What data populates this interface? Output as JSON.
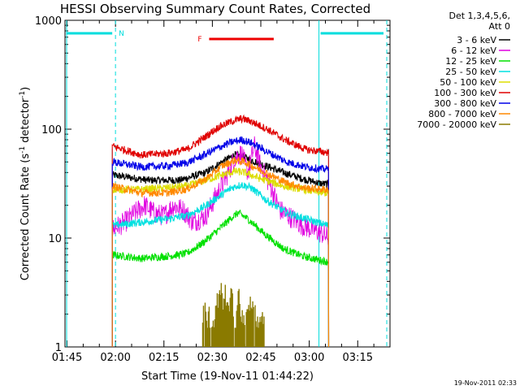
{
  "chart_data": {
    "type": "line",
    "title": "HESSI Observing Summary Count Rates, Corrected",
    "xlabel": "Start Time (19-Nov-11 01:44:22)",
    "ylabel": "Corrected Count Rate (s⁻¹ detector⁻¹)",
    "ylabel_main": "Corrected Count Rate (s",
    "ylabel_sup1": "-1",
    "ylabel_mid": " detector",
    "ylabel_sup2": "-1",
    "ylabel_end": ")",
    "yscale": "log",
    "xlim": [
      "01:44:22",
      "03:25:00"
    ],
    "ylim": [
      1,
      1000
    ],
    "x_ticks": [
      "01:45",
      "02:00",
      "02:15",
      "02:30",
      "02:45",
      "03:00",
      "03:15"
    ],
    "y_ticks": [
      "1",
      "10",
      "100",
      "1000"
    ],
    "legend_header": [
      "Det 1,3,4,5,6,",
      "Att 0"
    ],
    "legend_position": "right",
    "timestamp": "19-Nov-2011 02:33",
    "data_start": "01:59",
    "data_end": "03:06",
    "night_intervals": [
      [
        "01:44:22",
        "02:00"
      ],
      [
        "03:03",
        "03:24"
      ]
    ],
    "night_marker_label": "N",
    "flare_marker_label": "F",
    "flare_interval": [
      "02:29",
      "02:49"
    ],
    "colors": {
      "night": "#00dddd",
      "flare": "#ee0000"
    },
    "series": [
      {
        "name": "3 - 6 keV",
        "color": "#000000",
        "points": [
          [
            "01:59",
            38
          ],
          [
            "02:10",
            34
          ],
          [
            "02:20",
            34
          ],
          [
            "02:28",
            40
          ],
          [
            "02:33",
            50
          ],
          [
            "02:37",
            58
          ],
          [
            "02:40",
            55
          ],
          [
            "02:45",
            48
          ],
          [
            "02:52",
            40
          ],
          [
            "02:58",
            35
          ],
          [
            "03:03",
            32
          ],
          [
            "03:06",
            31
          ]
        ]
      },
      {
        "name": "6 - 12 keV",
        "color": "#e000e0",
        "points": [
          [
            "01:59",
            12
          ],
          [
            "02:03",
            14
          ],
          [
            "02:06",
            17
          ],
          [
            "02:09",
            20
          ],
          [
            "02:12",
            17
          ],
          [
            "02:15",
            16
          ],
          [
            "02:18",
            20
          ],
          [
            "02:21",
            18
          ],
          [
            "02:24",
            14
          ],
          [
            "02:28",
            16
          ],
          [
            "02:31",
            24
          ],
          [
            "02:34",
            35
          ],
          [
            "02:37",
            55
          ],
          [
            "02:39",
            60
          ],
          [
            "02:41",
            40
          ],
          [
            "02:43",
            70
          ],
          [
            "02:45",
            45
          ],
          [
            "02:48",
            30
          ],
          [
            "02:51",
            18
          ],
          [
            "02:55",
            15
          ],
          [
            "02:58",
            13
          ],
          [
            "03:01",
            12
          ],
          [
            "03:04",
            11
          ],
          [
            "03:06",
            10
          ]
        ]
      },
      {
        "name": "12 - 25 keV",
        "color": "#00e000",
        "points": [
          [
            "01:59",
            7
          ],
          [
            "02:08",
            6.5
          ],
          [
            "02:16",
            6.8
          ],
          [
            "02:22",
            7.2
          ],
          [
            "02:27",
            9
          ],
          [
            "02:32",
            12
          ],
          [
            "02:36",
            15.5
          ],
          [
            "02:38",
            17
          ],
          [
            "02:41",
            15
          ],
          [
            "02:46",
            11
          ],
          [
            "02:52",
            8
          ],
          [
            "02:58",
            6.8
          ],
          [
            "03:04",
            6.2
          ],
          [
            "03:06",
            6
          ]
        ]
      },
      {
        "name": "25 - 50 keV",
        "color": "#00e0e0",
        "points": [
          [
            "01:59",
            13
          ],
          [
            "02:08",
            14
          ],
          [
            "02:16",
            15
          ],
          [
            "02:22",
            16
          ],
          [
            "02:27",
            19
          ],
          [
            "02:32",
            24
          ],
          [
            "02:36",
            29
          ],
          [
            "02:39",
            31
          ],
          [
            "02:42",
            29
          ],
          [
            "02:47",
            22
          ],
          [
            "02:53",
            17
          ],
          [
            "02:59",
            15
          ],
          [
            "03:04",
            13.5
          ],
          [
            "03:06",
            13
          ]
        ]
      },
      {
        "name": "50 - 100 keV",
        "color": "#dddd00",
        "points": [
          [
            "01:59",
            28
          ],
          [
            "02:08",
            28
          ],
          [
            "02:16",
            29
          ],
          [
            "02:22",
            30
          ],
          [
            "02:28",
            34
          ],
          [
            "02:33",
            38
          ],
          [
            "02:37",
            41
          ],
          [
            "02:40",
            40
          ],
          [
            "02:45",
            35
          ],
          [
            "02:52",
            30
          ],
          [
            "02:58",
            28
          ],
          [
            "03:04",
            26
          ],
          [
            "03:06",
            26
          ]
        ]
      },
      {
        "name": "100 - 300 keV",
        "color": "#e00000",
        "points": [
          [
            "01:59",
            70
          ],
          [
            "02:08",
            58
          ],
          [
            "02:16",
            60
          ],
          [
            "02:22",
            65
          ],
          [
            "02:27",
            82
          ],
          [
            "02:32",
            105
          ],
          [
            "02:36",
            118
          ],
          [
            "02:39",
            125
          ],
          [
            "02:42",
            118
          ],
          [
            "02:47",
            100
          ],
          [
            "02:53",
            78
          ],
          [
            "02:59",
            65
          ],
          [
            "03:04",
            62
          ],
          [
            "03:06",
            61
          ]
        ]
      },
      {
        "name": "300 - 800 keV",
        "color": "#0000e8",
        "points": [
          [
            "01:59",
            50
          ],
          [
            "02:08",
            45
          ],
          [
            "02:16",
            46
          ],
          [
            "02:22",
            49
          ],
          [
            "02:27",
            57
          ],
          [
            "02:32",
            68
          ],
          [
            "02:36",
            76
          ],
          [
            "02:39",
            80
          ],
          [
            "02:42",
            75
          ],
          [
            "02:47",
            62
          ],
          [
            "02:53",
            50
          ],
          [
            "02:59",
            45
          ],
          [
            "03:04",
            43
          ],
          [
            "03:06",
            43
          ]
        ]
      },
      {
        "name": "800 - 7000 keV",
        "color": "#ff8800",
        "points": [
          [
            "01:59",
            30
          ],
          [
            "02:08",
            26
          ],
          [
            "02:16",
            26
          ],
          [
            "02:22",
            28
          ],
          [
            "02:28",
            35
          ],
          [
            "02:33",
            46
          ],
          [
            "02:37",
            52
          ],
          [
            "02:40",
            50
          ],
          [
            "02:45",
            42
          ],
          [
            "02:52",
            33
          ],
          [
            "02:58",
            29
          ],
          [
            "03:04",
            28
          ],
          [
            "03:06",
            28
          ]
        ]
      },
      {
        "name": "7000 - 20000 keV",
        "color": "#8a7a00",
        "points": [
          [
            "02:27",
            2
          ],
          [
            "02:29",
            2
          ],
          [
            "02:30",
            1.5
          ],
          [
            "02:31",
            2
          ],
          [
            "02:32",
            3
          ],
          [
            "02:33",
            3
          ],
          [
            "02:34",
            3
          ],
          [
            "02:35",
            2
          ],
          [
            "02:36",
            3
          ],
          [
            "02:37",
            1.5
          ],
          [
            "02:38",
            3
          ],
          [
            "02:39",
            2
          ],
          [
            "02:40",
            1.5
          ],
          [
            "02:41",
            2
          ],
          [
            "02:42",
            3
          ],
          [
            "02:43",
            2
          ],
          [
            "02:44",
            1.5
          ],
          [
            "02:45",
            2
          ],
          [
            "02:46",
            1.5
          ]
        ]
      }
    ]
  }
}
